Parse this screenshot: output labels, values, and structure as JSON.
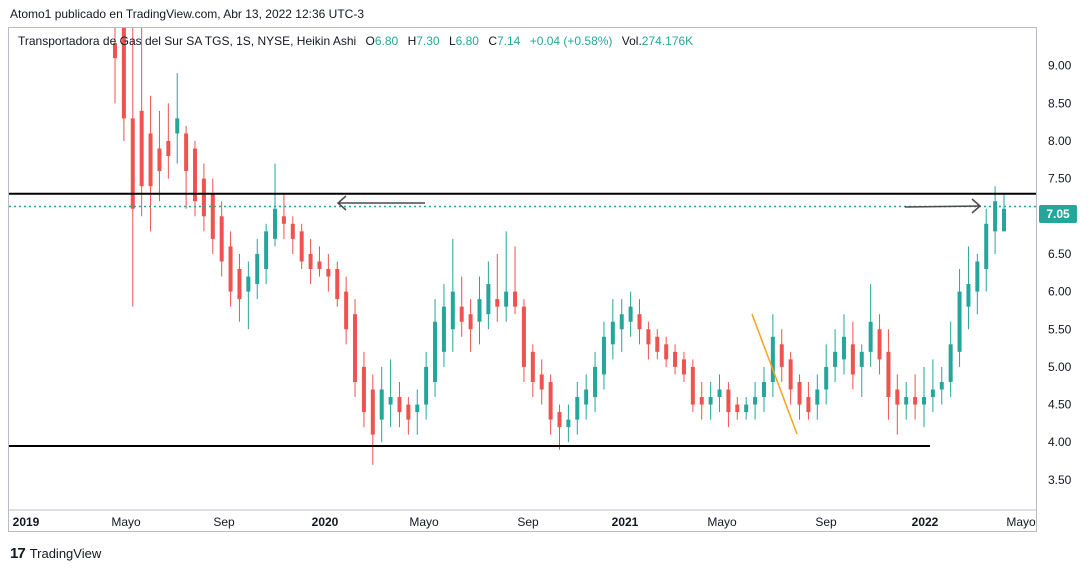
{
  "header": {
    "text": "Atomo1 publicado en TradingView.com, Abr 13, 2022 12:36 UTC-3"
  },
  "legend": {
    "symbol": "Transportadora de Gas del Sur SA TGS, 1S, NYSE, Heikin Ashi",
    "o_label": "O",
    "o_value": "6.80",
    "h_label": "H",
    "h_value": "7.30",
    "l_label": "L",
    "l_value": "6.80",
    "c_label": "C",
    "c_value": "7.14",
    "change": "+0.04 (+0.58%)",
    "vol_label": "Vol.",
    "vol_value": "274.176K"
  },
  "price_tag": "7.05",
  "footer": {
    "brand": "TradingView",
    "logo": "tv-logo-icon"
  },
  "colors": {
    "up": "#26a69a",
    "down": "#ef5350",
    "line": "#000000",
    "dotted": "#26a69a",
    "trend": "#f7a21b"
  },
  "chart_data": {
    "type": "candlestick",
    "xlabels": [
      "2019",
      "Mayo",
      "Sep",
      "2020",
      "Mayo",
      "Sep",
      "2021",
      "Mayo",
      "Sep",
      "2022",
      "Mayo"
    ],
    "yticks": [
      "9.00",
      "8.50",
      "8.00",
      "7.50",
      "7.00",
      "6.50",
      "6.00",
      "5.50",
      "5.00",
      "4.50",
      "4.00",
      "3.50"
    ],
    "ylim": [
      3.1,
      9.5
    ],
    "resistance": 7.3,
    "support": 3.95,
    "current_price": 7.13,
    "candles": [
      {
        "o": 9.3,
        "h": 9.5,
        "l": 8.5,
        "c": 9.1
      },
      {
        "o": 9.5,
        "h": 9.5,
        "l": 8.0,
        "c": 8.3
      },
      {
        "o": 8.3,
        "h": 9.5,
        "l": 5.8,
        "c": 7.1
      },
      {
        "o": 8.4,
        "h": 9.5,
        "l": 7.0,
        "c": 7.4
      },
      {
        "o": 8.1,
        "h": 8.6,
        "l": 6.8,
        "c": 7.4
      },
      {
        "o": 7.9,
        "h": 8.4,
        "l": 7.2,
        "c": 7.6
      },
      {
        "o": 8.0,
        "h": 8.5,
        "l": 7.5,
        "c": 7.8
      },
      {
        "o": 8.1,
        "h": 8.9,
        "l": 7.7,
        "c": 8.3
      },
      {
        "o": 8.1,
        "h": 8.2,
        "l": 7.1,
        "c": 7.6
      },
      {
        "o": 7.9,
        "h": 8.0,
        "l": 7.0,
        "c": 7.2
      },
      {
        "o": 7.5,
        "h": 7.7,
        "l": 6.8,
        "c": 7.0
      },
      {
        "o": 7.3,
        "h": 7.5,
        "l": 6.5,
        "c": 6.7
      },
      {
        "o": 7.0,
        "h": 7.2,
        "l": 6.2,
        "c": 6.4
      },
      {
        "o": 6.6,
        "h": 6.8,
        "l": 5.8,
        "c": 6.0
      },
      {
        "o": 6.3,
        "h": 6.5,
        "l": 5.6,
        "c": 5.9
      },
      {
        "o": 6.0,
        "h": 6.4,
        "l": 5.5,
        "c": 6.2
      },
      {
        "o": 6.1,
        "h": 6.7,
        "l": 5.9,
        "c": 6.5
      },
      {
        "o": 6.3,
        "h": 6.9,
        "l": 6.1,
        "c": 6.8
      },
      {
        "o": 6.7,
        "h": 7.7,
        "l": 6.6,
        "c": 7.1
      },
      {
        "o": 7.0,
        "h": 7.3,
        "l": 6.7,
        "c": 6.9
      },
      {
        "o": 6.9,
        "h": 7.0,
        "l": 6.5,
        "c": 6.7
      },
      {
        "o": 6.8,
        "h": 6.9,
        "l": 6.3,
        "c": 6.4
      },
      {
        "o": 6.5,
        "h": 6.7,
        "l": 6.1,
        "c": 6.3
      },
      {
        "o": 6.4,
        "h": 6.6,
        "l": 6.2,
        "c": 6.3
      },
      {
        "o": 6.3,
        "h": 6.5,
        "l": 6.0,
        "c": 6.2
      },
      {
        "o": 6.3,
        "h": 6.4,
        "l": 5.8,
        "c": 5.9
      },
      {
        "o": 6.0,
        "h": 6.2,
        "l": 5.3,
        "c": 5.5
      },
      {
        "o": 5.7,
        "h": 5.9,
        "l": 4.6,
        "c": 4.8
      },
      {
        "o": 5.0,
        "h": 5.2,
        "l": 4.2,
        "c": 4.4
      },
      {
        "o": 4.7,
        "h": 4.9,
        "l": 3.7,
        "c": 4.1
      },
      {
        "o": 4.3,
        "h": 5.0,
        "l": 4.0,
        "c": 4.7
      },
      {
        "o": 4.5,
        "h": 5.1,
        "l": 4.2,
        "c": 4.6
      },
      {
        "o": 4.6,
        "h": 4.8,
        "l": 4.2,
        "c": 4.4
      },
      {
        "o": 4.5,
        "h": 4.6,
        "l": 4.1,
        "c": 4.3
      },
      {
        "o": 4.4,
        "h": 4.7,
        "l": 4.1,
        "c": 4.5
      },
      {
        "o": 4.5,
        "h": 5.2,
        "l": 4.3,
        "c": 5.0
      },
      {
        "o": 4.8,
        "h": 5.9,
        "l": 4.6,
        "c": 5.6
      },
      {
        "o": 5.2,
        "h": 6.1,
        "l": 5.0,
        "c": 5.8
      },
      {
        "o": 5.5,
        "h": 6.7,
        "l": 5.2,
        "c": 6.0
      },
      {
        "o": 5.8,
        "h": 6.2,
        "l": 5.4,
        "c": 5.6
      },
      {
        "o": 5.7,
        "h": 5.9,
        "l": 5.2,
        "c": 5.5
      },
      {
        "o": 5.6,
        "h": 6.2,
        "l": 5.3,
        "c": 5.9
      },
      {
        "o": 5.7,
        "h": 6.4,
        "l": 5.5,
        "c": 6.1
      },
      {
        "o": 5.9,
        "h": 6.5,
        "l": 5.6,
        "c": 5.8
      },
      {
        "o": 5.8,
        "h": 6.8,
        "l": 5.6,
        "c": 6.0
      },
      {
        "o": 6.0,
        "h": 6.6,
        "l": 5.7,
        "c": 5.8
      },
      {
        "o": 5.8,
        "h": 5.9,
        "l": 4.8,
        "c": 5.0
      },
      {
        "o": 5.2,
        "h": 5.3,
        "l": 4.6,
        "c": 4.8
      },
      {
        "o": 4.9,
        "h": 5.1,
        "l": 4.5,
        "c": 4.7
      },
      {
        "o": 4.8,
        "h": 4.9,
        "l": 4.1,
        "c": 4.3
      },
      {
        "o": 4.4,
        "h": 4.5,
        "l": 3.9,
        "c": 4.2
      },
      {
        "o": 4.2,
        "h": 4.5,
        "l": 4.0,
        "c": 4.3
      },
      {
        "o": 4.3,
        "h": 4.8,
        "l": 4.1,
        "c": 4.6
      },
      {
        "o": 4.5,
        "h": 4.9,
        "l": 4.3,
        "c": 4.7
      },
      {
        "o": 4.6,
        "h": 5.2,
        "l": 4.4,
        "c": 5.0
      },
      {
        "o": 4.9,
        "h": 5.6,
        "l": 4.7,
        "c": 5.4
      },
      {
        "o": 5.3,
        "h": 5.9,
        "l": 5.1,
        "c": 5.6
      },
      {
        "o": 5.5,
        "h": 5.9,
        "l": 5.2,
        "c": 5.7
      },
      {
        "o": 5.6,
        "h": 6.0,
        "l": 5.4,
        "c": 5.8
      },
      {
        "o": 5.7,
        "h": 5.9,
        "l": 5.3,
        "c": 5.5
      },
      {
        "o": 5.5,
        "h": 5.6,
        "l": 5.1,
        "c": 5.3
      },
      {
        "o": 5.4,
        "h": 5.5,
        "l": 5.1,
        "c": 5.2
      },
      {
        "o": 5.3,
        "h": 5.4,
        "l": 5.0,
        "c": 5.1
      },
      {
        "o": 5.2,
        "h": 5.3,
        "l": 4.9,
        "c": 5.0
      },
      {
        "o": 5.1,
        "h": 5.2,
        "l": 4.8,
        "c": 4.9
      },
      {
        "o": 5.0,
        "h": 5.1,
        "l": 4.4,
        "c": 4.5
      },
      {
        "o": 4.6,
        "h": 4.8,
        "l": 4.3,
        "c": 4.5
      },
      {
        "o": 4.5,
        "h": 4.8,
        "l": 4.3,
        "c": 4.6
      },
      {
        "o": 4.6,
        "h": 4.9,
        "l": 4.4,
        "c": 4.7
      },
      {
        "o": 4.7,
        "h": 4.8,
        "l": 4.2,
        "c": 4.4
      },
      {
        "o": 4.5,
        "h": 4.6,
        "l": 4.3,
        "c": 4.4
      },
      {
        "o": 4.4,
        "h": 4.6,
        "l": 4.3,
        "c": 4.5
      },
      {
        "o": 4.5,
        "h": 4.8,
        "l": 4.3,
        "c": 4.6
      },
      {
        "o": 4.6,
        "h": 5.0,
        "l": 4.4,
        "c": 4.8
      },
      {
        "o": 4.8,
        "h": 5.7,
        "l": 4.6,
        "c": 5.4
      },
      {
        "o": 5.3,
        "h": 5.5,
        "l": 4.8,
        "c": 5.0
      },
      {
        "o": 5.1,
        "h": 5.2,
        "l": 4.5,
        "c": 4.7
      },
      {
        "o": 4.8,
        "h": 4.9,
        "l": 4.3,
        "c": 4.5
      },
      {
        "o": 4.6,
        "h": 4.8,
        "l": 4.3,
        "c": 4.4
      },
      {
        "o": 4.5,
        "h": 4.9,
        "l": 4.3,
        "c": 4.7
      },
      {
        "o": 4.7,
        "h": 5.3,
        "l": 4.5,
        "c": 5.0
      },
      {
        "o": 5.0,
        "h": 5.5,
        "l": 4.8,
        "c": 5.2
      },
      {
        "o": 5.1,
        "h": 5.7,
        "l": 4.9,
        "c": 5.4
      },
      {
        "o": 5.3,
        "h": 5.6,
        "l": 4.7,
        "c": 4.9
      },
      {
        "o": 5.0,
        "h": 5.3,
        "l": 4.6,
        "c": 5.2
      },
      {
        "o": 5.2,
        "h": 6.1,
        "l": 5.0,
        "c": 5.6
      },
      {
        "o": 5.5,
        "h": 5.7,
        "l": 4.9,
        "c": 5.1
      },
      {
        "o": 5.2,
        "h": 5.5,
        "l": 4.3,
        "c": 4.6
      },
      {
        "o": 4.7,
        "h": 4.9,
        "l": 4.1,
        "c": 4.5
      },
      {
        "o": 4.5,
        "h": 4.8,
        "l": 4.3,
        "c": 4.6
      },
      {
        "o": 4.6,
        "h": 4.9,
        "l": 4.3,
        "c": 4.5
      },
      {
        "o": 4.5,
        "h": 5.0,
        "l": 4.2,
        "c": 4.6
      },
      {
        "o": 4.6,
        "h": 5.1,
        "l": 4.4,
        "c": 4.7
      },
      {
        "o": 4.7,
        "h": 5.0,
        "l": 4.5,
        "c": 4.8
      },
      {
        "o": 4.8,
        "h": 5.6,
        "l": 4.6,
        "c": 5.3
      },
      {
        "o": 5.2,
        "h": 6.3,
        "l": 5.0,
        "c": 6.0
      },
      {
        "o": 5.8,
        "h": 6.6,
        "l": 5.5,
        "c": 6.1
      },
      {
        "o": 6.0,
        "h": 6.5,
        "l": 5.7,
        "c": 6.4
      },
      {
        "o": 6.3,
        "h": 7.1,
        "l": 6.0,
        "c": 6.9
      },
      {
        "o": 6.8,
        "h": 7.4,
        "l": 6.5,
        "c": 7.2
      },
      {
        "o": 6.8,
        "h": 7.3,
        "l": 6.8,
        "c": 7.1
      }
    ]
  }
}
